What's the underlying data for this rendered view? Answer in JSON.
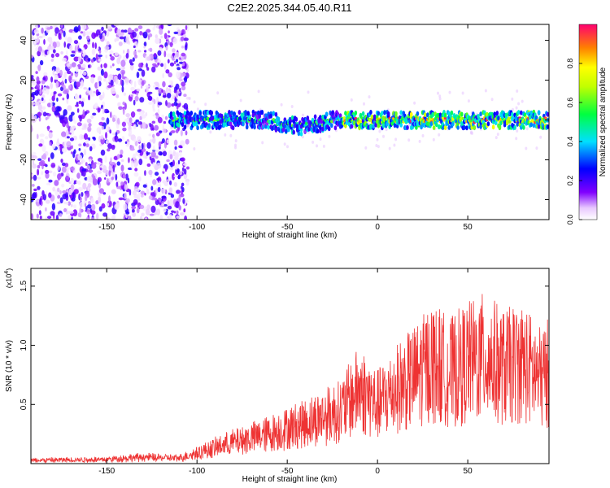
{
  "title": "C2E2.2025.344.05.40.R11",
  "chart_data": [
    {
      "type": "heatmap",
      "title": "C2E2.2025.344.05.40.R11",
      "xlabel": "Height of straight line (km)",
      "ylabel": "Frequency (Hz)",
      "xlim": [
        -192,
        95
      ],
      "ylim": [
        -50,
        48
      ],
      "x_ticks": [
        -150,
        -100,
        -50,
        0,
        50
      ],
      "x_tick_labels": [
        "-150",
        "-100",
        "-50",
        "0",
        "50"
      ],
      "y_ticks": [
        -40,
        -20,
        0,
        20,
        40
      ],
      "y_tick_labels": [
        "-40",
        "-20",
        "0",
        "20",
        "40"
      ],
      "colorbar": {
        "label": "Normalized spectral amplitude",
        "range": [
          0.0,
          1.0
        ],
        "ticks": [
          0.0,
          0.2,
          0.4,
          0.6,
          0.8
        ],
        "tick_labels": [
          "0.0",
          "0.2",
          "0.4",
          "0.6",
          "0.8"
        ]
      },
      "description_regions": {
        "noise_region_x": [
          -192,
          -105
        ],
        "signal_band_center_hz": 0,
        "signal_band_halfwidth_hz": 4
      }
    },
    {
      "type": "line",
      "xlabel": "Height of straight line (km)",
      "ylabel": "SNR (10 * v/v)",
      "y_scale_label": "(x10",
      "y_scale_exp": "4",
      "y_scale_close": ")",
      "xlim": [
        -192,
        95
      ],
      "ylim": [
        0,
        1.65
      ],
      "x_ticks": [
        -150,
        -100,
        -50,
        0,
        50
      ],
      "x_tick_labels": [
        "-150",
        "-100",
        "-50",
        "0",
        "50"
      ],
      "y_ticks": [
        0.5,
        1.0,
        1.5
      ],
      "y_tick_labels": [
        "0.5",
        "1.0",
        "1.5"
      ],
      "series": [
        {
          "name": "SNR",
          "color": "#ee3333",
          "envelope_x": [
            -192,
            -150,
            -130,
            -110,
            -100,
            -80,
            -60,
            -40,
            -20,
            -10,
            0,
            10,
            20,
            30,
            40,
            50,
            60,
            70,
            80,
            90,
            95
          ],
          "envelope_y": [
            0.03,
            0.04,
            0.06,
            0.05,
            0.1,
            0.2,
            0.28,
            0.38,
            0.5,
            0.7,
            0.55,
            0.7,
            0.8,
            0.95,
            0.85,
            0.95,
            1.0,
            0.9,
            0.95,
            0.8,
            0.85
          ]
        }
      ]
    }
  ]
}
